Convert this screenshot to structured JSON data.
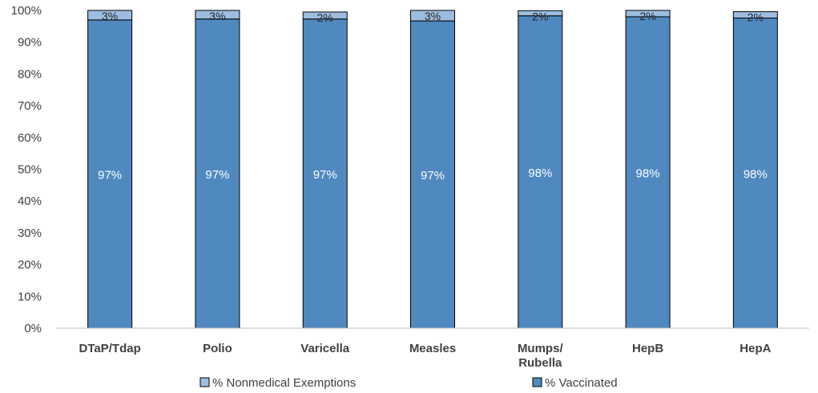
{
  "chart_data": {
    "type": "bar",
    "stacked": true,
    "categories": [
      "DTaP/Tdap",
      "Polio",
      "Varicella",
      "Measles",
      "Mumps/\nRubella",
      "HepB",
      "HepA"
    ],
    "series": [
      {
        "name": "% Vaccinated",
        "values": [
          97,
          97.3,
          97.3,
          96.7,
          98.3,
          98,
          97.6
        ],
        "labels": [
          "97%",
          "97%",
          "97%",
          "97%",
          "98%",
          "98%",
          "98%"
        ],
        "color": "#4f89bf"
      },
      {
        "name": "% Nonmedical Exemptions",
        "values": [
          3,
          2.7,
          2.2,
          3.3,
          1.6,
          2,
          2
        ],
        "labels": [
          "3%",
          "3%",
          "2%",
          "3%",
          "2%",
          "2%",
          "2%"
        ],
        "color": "#9dbde0"
      }
    ],
    "y_ticks": [
      "0%",
      "10%",
      "20%",
      "30%",
      "40%",
      "50%",
      "60%",
      "70%",
      "80%",
      "90%",
      "100%"
    ],
    "ylim": [
      0,
      100
    ],
    "legend_position": "bottom",
    "grid": false
  }
}
